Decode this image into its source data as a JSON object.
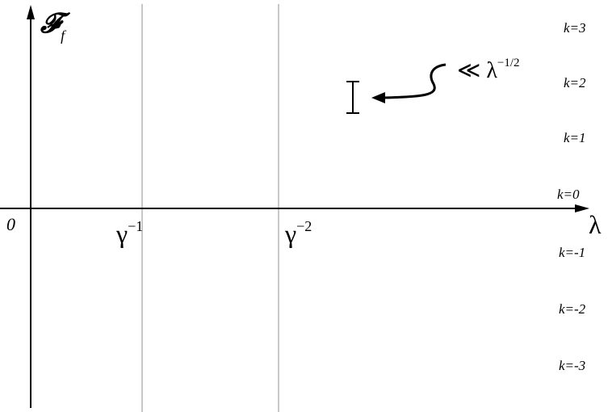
{
  "figure": {
    "y_axis_label": {
      "main": "𝓕",
      "sub": "f"
    },
    "x_axis_label": "λ",
    "origin_label": "0",
    "vline_labels": [
      {
        "base": "γ",
        "sup": "−1"
      },
      {
        "base": "γ",
        "sup": "−2"
      }
    ],
    "branch_labels": [
      "k=3",
      "k=2",
      "k=1",
      "k=0",
      "k=-1",
      "k=-2",
      "k=-3"
    ],
    "annotation": {
      "prefix": "≪ λ",
      "sup": "−1/2"
    },
    "colors": {
      "fill": "#e01f2d",
      "axis": "#000000",
      "vline": "#c8c8c8",
      "background": "#ffffff"
    }
  }
}
